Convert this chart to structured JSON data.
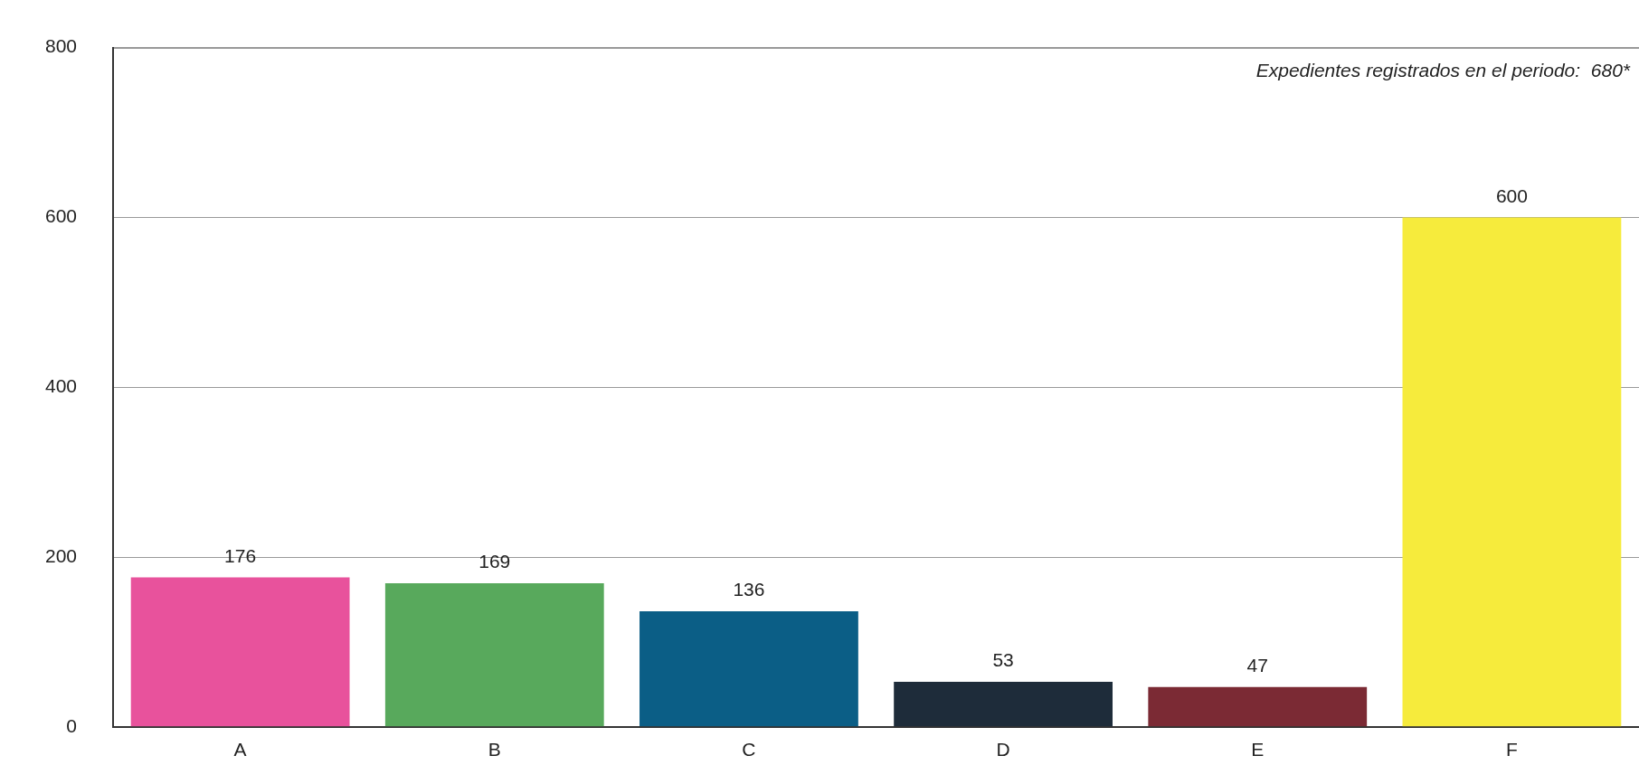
{
  "chart_data": {
    "type": "bar",
    "categories": [
      "A",
      "B",
      "C",
      "D",
      "E",
      "F"
    ],
    "values": [
      176,
      169,
      136,
      53,
      47,
      600
    ],
    "colors": [
      "#e8529c",
      "#58a95c",
      "#0b5e86",
      "#1e2c3a",
      "#7b2a34",
      "#f6eb3c"
    ],
    "ylim": [
      0,
      800
    ],
    "yticks": [
      0,
      200,
      400,
      600,
      800
    ],
    "grid": "y",
    "data_labels": true,
    "annotations": [
      "Expedientes registrados en el periodo:  680*"
    ]
  }
}
